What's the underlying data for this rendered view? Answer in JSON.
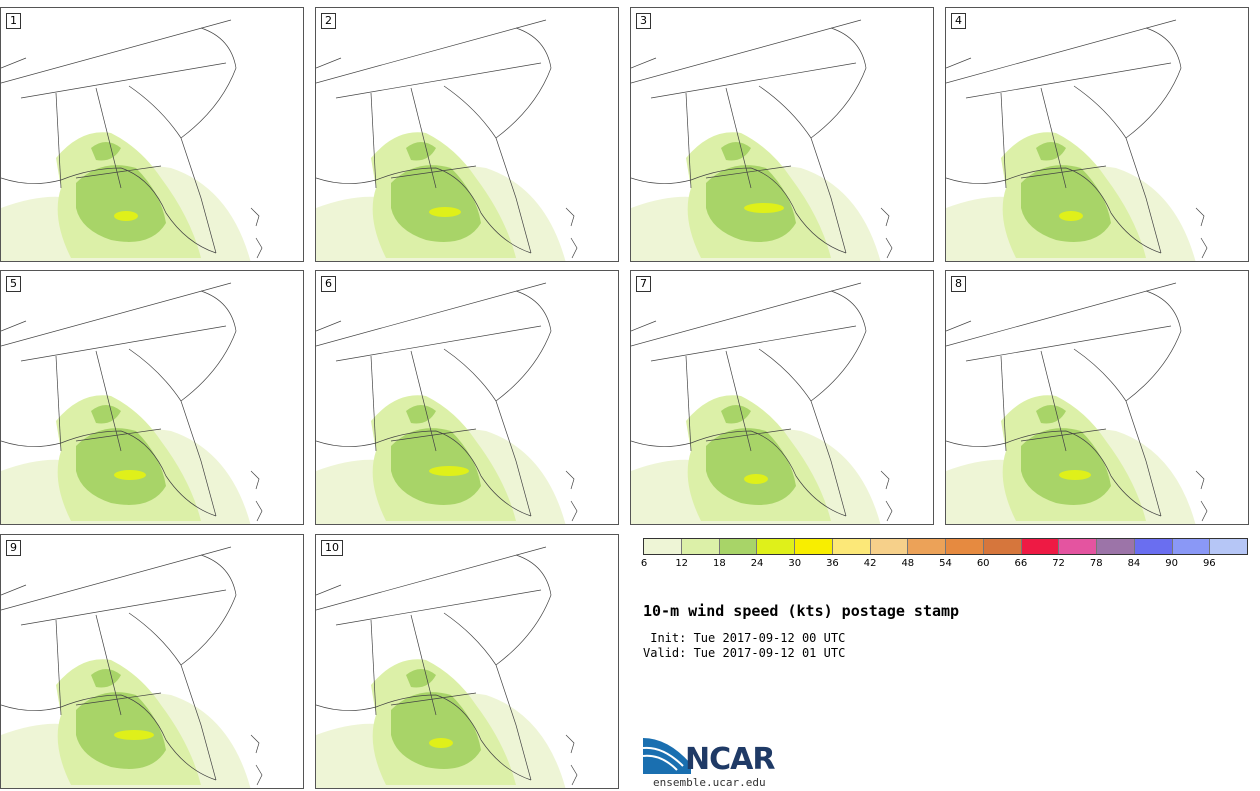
{
  "panels": [
    {
      "label": "1"
    },
    {
      "label": "2"
    },
    {
      "label": "3"
    },
    {
      "label": "4"
    },
    {
      "label": "5"
    },
    {
      "label": "6"
    },
    {
      "label": "7"
    },
    {
      "label": "8"
    },
    {
      "label": "9"
    },
    {
      "label": "10"
    }
  ],
  "legend": {
    "colors": [
      "#eef5d6",
      "#dcf0a8",
      "#a8d468",
      "#dff01a",
      "#f8ee00",
      "#fce878",
      "#f6d08a",
      "#eca258",
      "#e68a40",
      "#d6763c",
      "#ee1a44",
      "#e454a0",
      "#9c74a8",
      "#6a6ef0",
      "#8a98f6",
      "#b6c6f6"
    ],
    "ticks": [
      "6",
      "12",
      "18",
      "24",
      "30",
      "36",
      "42",
      "48",
      "54",
      "60",
      "66",
      "72",
      "78",
      "84",
      "90",
      "96"
    ]
  },
  "title": "10-m wind speed (kts) postage stamp",
  "init": " Init: Tue 2017-09-12 00 UTC",
  "valid": "Valid: Tue 2017-09-12 01 UTC",
  "logo": {
    "name": "NCAR",
    "url": "ensemble.ucar.edu"
  }
}
